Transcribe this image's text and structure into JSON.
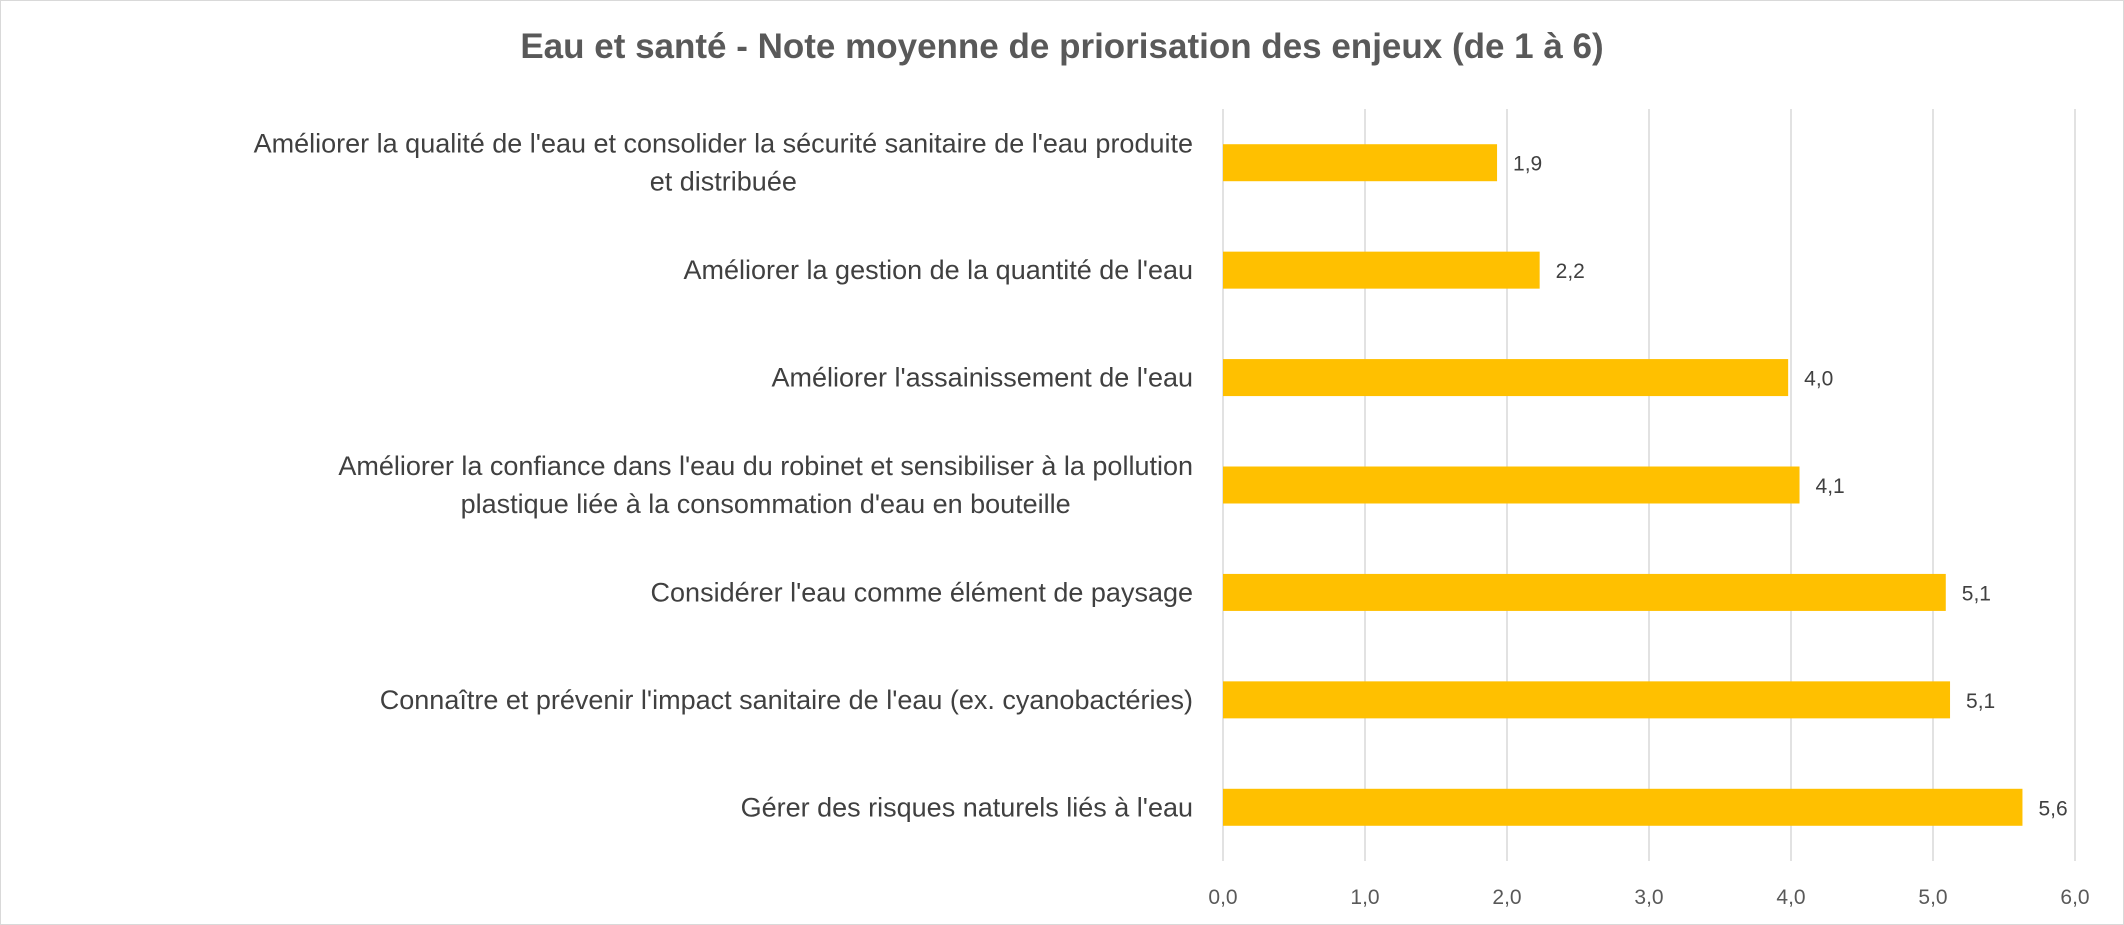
{
  "chart_data": {
    "type": "bar",
    "orientation": "horizontal",
    "title": "Eau et santé - Note moyenne de priorisation des enjeux (de 1 à 6)",
    "xlabel": "",
    "ylabel": "",
    "xlim": [
      0,
      6
    ],
    "grid": true,
    "legend": "none",
    "bar_color": "#FFC000",
    "x_ticks": [
      "0,0",
      "1,0",
      "2,0",
      "3,0",
      "4,0",
      "5,0",
      "6,0"
    ],
    "categories": [
      [
        "Améliorer la qualité de l'eau et consolider la sécurité sanitaire de l'eau produite",
        "et distribuée"
      ],
      [
        "Améliorer la gestion de la quantité de l'eau"
      ],
      [
        "Améliorer l'assainissement de l'eau"
      ],
      [
        "Améliorer la confiance dans l'eau du robinet et sensibiliser à la pollution",
        "plastique liée à la consommation d'eau en bouteille"
      ],
      [
        "Considérer l'eau comme élément de paysage"
      ],
      [
        "Connaître et prévenir l'impact sanitaire de l'eau (ex. cyanobactéries)"
      ],
      [
        "Gérer des risques naturels liés à l'eau"
      ]
    ],
    "values": [
      1.93,
      2.23,
      3.98,
      4.06,
      5.09,
      5.12,
      5.63
    ],
    "data_labels": [
      "1,9",
      "2,2",
      "4,0",
      "4,1",
      "5,1",
      "5,1",
      "5,6"
    ]
  }
}
